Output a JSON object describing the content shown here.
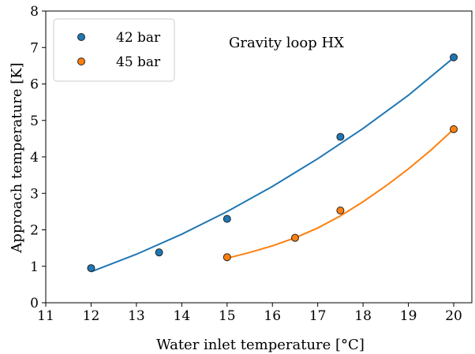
{
  "chart_data": {
    "type": "scatter",
    "xlabel": "Water inlet temperature [°C]",
    "ylabel": "Approach temperature [K]",
    "annotation": "Gravity loop HX",
    "xlim": [
      11,
      20.4
    ],
    "ylim": [
      0,
      8
    ],
    "xticks": [
      11,
      12,
      13,
      14,
      15,
      16,
      17,
      18,
      19,
      20
    ],
    "yticks": [
      0,
      1,
      2,
      3,
      4,
      5,
      6,
      7,
      8
    ],
    "grid": false,
    "legend_position": "top-left",
    "series": [
      {
        "name": "42 bar",
        "color": "#1f77b4",
        "points": [
          [
            12,
            0.95
          ],
          [
            13.5,
            1.38
          ],
          [
            15,
            2.3
          ],
          [
            17.5,
            4.55
          ],
          [
            20,
            6.73
          ]
        ],
        "fit": [
          [
            12,
            0.85
          ],
          [
            13,
            1.33
          ],
          [
            14,
            1.88
          ],
          [
            15,
            2.5
          ],
          [
            16,
            3.19
          ],
          [
            17,
            3.95
          ],
          [
            18,
            4.78
          ],
          [
            19,
            5.69
          ],
          [
            20,
            6.72
          ]
        ]
      },
      {
        "name": "45 bar",
        "color": "#ff7f0e",
        "points": [
          [
            15,
            1.25
          ],
          [
            16.5,
            1.78
          ],
          [
            17.5,
            2.53
          ],
          [
            20,
            4.76
          ]
        ],
        "fit": [
          [
            15,
            1.22
          ],
          [
            15.5,
            1.38
          ],
          [
            16,
            1.56
          ],
          [
            16.5,
            1.78
          ],
          [
            17,
            2.05
          ],
          [
            17.5,
            2.38
          ],
          [
            18,
            2.77
          ],
          [
            18.5,
            3.2
          ],
          [
            19,
            3.67
          ],
          [
            19.5,
            4.19
          ],
          [
            20,
            4.76
          ]
        ]
      }
    ]
  }
}
